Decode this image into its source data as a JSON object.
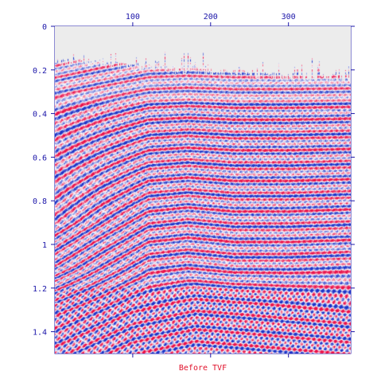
{
  "chart_data": {
    "type": "heatmap",
    "title": "Before TVF",
    "xlabel": "",
    "ylabel": "",
    "x_ticks": [
      "100",
      "200",
      "300"
    ],
    "x_tick_values": [
      100,
      200,
      300
    ],
    "y_ticks": [
      "0",
      "0.2",
      "0.4",
      "0.6",
      "0.8",
      "1",
      "1.2",
      "1.4"
    ],
    "y_tick_values": [
      0,
      0.2,
      0.4,
      0.6,
      0.8,
      1.0,
      1.2,
      1.4
    ],
    "xlim": [
      0,
      380
    ],
    "ylim": [
      0,
      1.5
    ],
    "y_inverted": true,
    "x_axis_position": "top",
    "grid": false,
    "legend": "none",
    "colormap": {
      "positive": "#e8104a",
      "negative": "#1c33c8",
      "zero": "#ffffff",
      "mute_zone": "#ececec"
    },
    "axis_color": "#1a14a8",
    "title_color": "#e0102a",
    "horizon_shape": {
      "first_break_time": [
        [
          0,
          0.14
        ],
        [
          100,
          0.16
        ],
        [
          200,
          0.19
        ],
        [
          300,
          0.21
        ],
        [
          375,
          0.22
        ]
      ],
      "dip_horizon_time": [
        [
          0,
          1.05
        ],
        [
          60,
          0.92
        ],
        [
          120,
          0.8
        ],
        [
          170,
          0.78
        ],
        [
          230,
          0.8
        ],
        [
          300,
          0.8
        ],
        [
          380,
          0.79
        ]
      ],
      "deep_horizon_time": [
        [
          0,
          1.38
        ],
        [
          100,
          1.22
        ],
        [
          180,
          1.16
        ],
        [
          250,
          1.18
        ],
        [
          380,
          1.22
        ]
      ]
    }
  }
}
